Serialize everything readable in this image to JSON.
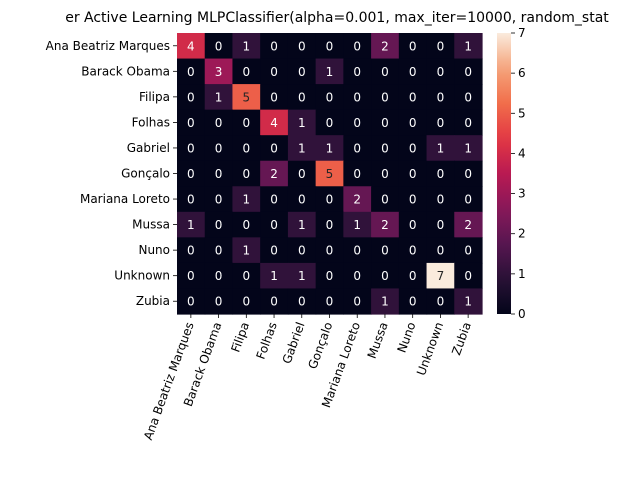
{
  "chart_data": {
    "type": "heatmap",
    "title": "er Active Learning MLPClassifier(alpha=0.001, max_iter=10000, random_stat",
    "xlabel": "",
    "ylabel": "",
    "row_labels": [
      "Ana Beatriz Marques",
      "Barack Obama",
      "Filipa",
      "Folhas",
      "Gabriel",
      "Gonçalo",
      "Mariana Loreto",
      "Mussa",
      "Nuno",
      "Unknown",
      "Zubia"
    ],
    "col_labels": [
      "Ana Beatriz Marques",
      "Barack Obama",
      "Filipa",
      "Folhas",
      "Gabriel",
      "Gonçalo",
      "Mariana Loreto",
      "Mussa",
      "Nuno",
      "Unknown",
      "Zubia"
    ],
    "values": [
      [
        4,
        0,
        1,
        0,
        0,
        0,
        0,
        2,
        0,
        0,
        1
      ],
      [
        0,
        3,
        0,
        0,
        0,
        1,
        0,
        0,
        0,
        0,
        0
      ],
      [
        0,
        1,
        5,
        0,
        0,
        0,
        0,
        0,
        0,
        0,
        0
      ],
      [
        0,
        0,
        0,
        4,
        1,
        0,
        0,
        0,
        0,
        0,
        0
      ],
      [
        0,
        0,
        0,
        0,
        1,
        1,
        0,
        0,
        0,
        1,
        1
      ],
      [
        0,
        0,
        0,
        2,
        0,
        5,
        0,
        0,
        0,
        0,
        0
      ],
      [
        0,
        0,
        1,
        0,
        0,
        0,
        2,
        0,
        0,
        0,
        0
      ],
      [
        1,
        0,
        0,
        0,
        1,
        0,
        1,
        2,
        0,
        0,
        2
      ],
      [
        0,
        0,
        1,
        0,
        0,
        0,
        0,
        0,
        0,
        0,
        0
      ],
      [
        0,
        0,
        0,
        1,
        1,
        0,
        0,
        0,
        0,
        7,
        0
      ],
      [
        0,
        0,
        0,
        0,
        0,
        0,
        0,
        1,
        0,
        0,
        1
      ]
    ],
    "colormap": "rocket",
    "vmin": 0,
    "vmax": 7,
    "colorbar_ticks": [
      "0",
      "1",
      "2",
      "3",
      "4",
      "5",
      "6",
      "7"
    ],
    "annotations": true,
    "grid": false,
    "colorbar_placement": "right"
  }
}
